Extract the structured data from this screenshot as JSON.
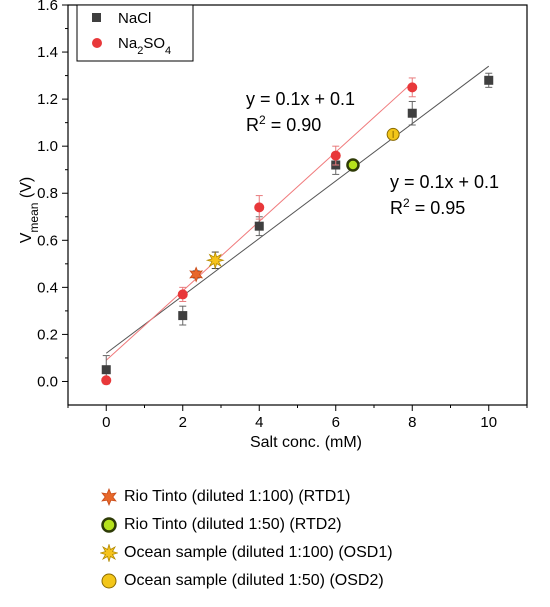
{
  "chart_data": {
    "type": "scatter",
    "xlabel": "Salt conc. (mM)",
    "ylabel_main": "V",
    "ylabel_sub": "mean",
    "ylabel_unit": " (V)",
    "xlim": [
      -1,
      11
    ],
    "ylim": [
      -0.1,
      1.6
    ],
    "x_ticks": [
      0,
      2,
      4,
      6,
      8,
      10
    ],
    "y_ticks": [
      0.0,
      0.2,
      0.4,
      0.6,
      0.8,
      1.0,
      1.2,
      1.4,
      1.6
    ],
    "grid": false,
    "legend_position": "top-left",
    "series": [
      {
        "name": "NaCl",
        "color": "#3f3f3f",
        "marker": "square",
        "x": [
          0,
          2,
          4,
          6,
          8,
          10
        ],
        "y": [
          0.05,
          0.28,
          0.66,
          0.92,
          1.14,
          1.28
        ],
        "err": [
          0.06,
          0.04,
          0.04,
          0.04,
          0.05,
          0.03
        ]
      },
      {
        "name_main": "Na",
        "name_sub1": "2",
        "name_mid": "SO",
        "name_sub2": "4",
        "color": "#e8383a",
        "marker": "circle",
        "x": [
          0,
          2,
          4,
          6,
          8
        ],
        "y": [
          0.005,
          0.37,
          0.74,
          0.96,
          1.25
        ],
        "err": [
          0.0,
          0.03,
          0.05,
          0.04,
          0.04
        ]
      }
    ],
    "fits": [
      {
        "series": "NaCl",
        "color": "#555555",
        "x": [
          0,
          10
        ],
        "y": [
          0.12,
          1.34
        ],
        "equation": "y = 0.1x + 0.1",
        "r2_label": "R",
        "r2_sup": "2",
        "r2_value": " = 0.95"
      },
      {
        "series": "Na2SO4",
        "color": "#f07a7c",
        "x": [
          0,
          8
        ],
        "y": [
          0.09,
          1.27
        ],
        "equation": "y = 0.1x + 0.1",
        "r2_label": "R",
        "r2_sup": "2",
        "r2_value": " = 0.90"
      }
    ],
    "samples": [
      {
        "label": "Rio Tinto (diluted 1:100) (RTD1)",
        "marker": "star6",
        "fill": "#e8682a",
        "stroke": "#c84c1a",
        "x": 2.35,
        "y": 0.455,
        "err": 0.015
      },
      {
        "label": "Rio Tinto (diluted 1:50) (RTD2)",
        "marker": "ring",
        "fill": "#b5e21c",
        "stroke": "#2e3b06",
        "x": 6.45,
        "y": 0.92,
        "err": 0.01
      },
      {
        "label": "Ocean sample (diluted 1:100) (OSD1)",
        "marker": "star8",
        "fill": "#f6c31c",
        "stroke": "#b48a00",
        "x": 2.85,
        "y": 0.515,
        "err": 0.035
      },
      {
        "label": "Ocean sample (diluted 1:50) (OSD2)",
        "marker": "circle-line",
        "fill": "#f3c619",
        "stroke": "#8a6a00",
        "x": 7.5,
        "y": 1.05,
        "err": 0.01
      }
    ]
  }
}
